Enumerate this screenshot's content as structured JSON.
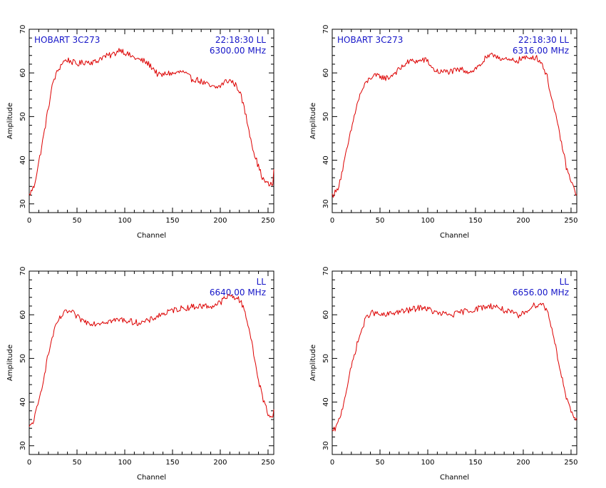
{
  "chart_data": [
    {
      "type": "line",
      "source": "HOBART 3C273",
      "time": "22:18:30",
      "polarization": "LL",
      "frequency": "6300.00 MHz",
      "xlabel": "Channel",
      "ylabel": "Amplitude",
      "xlim": [
        0,
        256
      ],
      "ylim": [
        28,
        70
      ],
      "xticks": [
        0,
        50,
        100,
        150,
        200,
        250
      ],
      "yticks": [
        30,
        40,
        50,
        60,
        70
      ],
      "line_color": "#dd0000",
      "series": [
        {
          "x": [
            0,
            5,
            10,
            15,
            20,
            25,
            30,
            35,
            40,
            45,
            50,
            55,
            60,
            65,
            70,
            75,
            80,
            85,
            90,
            95,
            100,
            105,
            110,
            115,
            120,
            125,
            130,
            135,
            140,
            145,
            150,
            155,
            160,
            165,
            170,
            175,
            180,
            185,
            190,
            195,
            200,
            205,
            210,
            215,
            220,
            225,
            230,
            235,
            240,
            245,
            250,
            255,
            256
          ],
          "values": [
            32,
            34,
            39.5,
            45.5,
            52,
            58,
            60.5,
            62.5,
            63,
            62.5,
            62,
            62.3,
            62.6,
            62.5,
            62.5,
            63.5,
            63.8,
            64,
            64.5,
            65.5,
            64.7,
            64,
            63.5,
            63,
            62.7,
            62,
            61,
            59.5,
            59.5,
            60,
            59.8,
            60,
            60.3,
            59.5,
            58.6,
            58.5,
            58,
            57.5,
            56.8,
            56.6,
            57,
            58,
            58.3,
            57.5,
            56,
            52,
            47,
            42,
            38.5,
            35.5,
            34.5,
            34.3,
            38
          ]
        }
      ]
    },
    {
      "type": "line",
      "source": "HOBART 3C273",
      "time": "22:18:30",
      "polarization": "LL",
      "frequency": "6316.00 MHz",
      "xlabel": "Channel",
      "ylabel": "Amplitude",
      "xlim": [
        0,
        256
      ],
      "ylim": [
        28,
        70
      ],
      "xticks": [
        0,
        50,
        100,
        150,
        200,
        250
      ],
      "yticks": [
        30,
        40,
        50,
        60,
        70
      ],
      "line_color": "#dd0000",
      "series": [
        {
          "x": [
            0,
            5,
            10,
            15,
            20,
            25,
            30,
            35,
            40,
            45,
            50,
            55,
            60,
            65,
            70,
            75,
            80,
            85,
            90,
            95,
            100,
            105,
            110,
            115,
            120,
            125,
            130,
            135,
            140,
            145,
            150,
            155,
            160,
            165,
            170,
            175,
            180,
            185,
            190,
            195,
            200,
            205,
            210,
            215,
            220,
            225,
            230,
            235,
            240,
            245,
            250,
            255
          ],
          "values": [
            32,
            33,
            37,
            42,
            47,
            52,
            55.5,
            57.5,
            59,
            59.2,
            59.3,
            58.8,
            59,
            60,
            60.7,
            61.8,
            62.5,
            62.8,
            62.6,
            63,
            62.7,
            61,
            60.3,
            60.2,
            60.3,
            60.3,
            60.5,
            60.8,
            60.5,
            60.3,
            61,
            61.8,
            63.2,
            63.7,
            64.2,
            63.6,
            63,
            62.8,
            62.8,
            62.9,
            63.5,
            63.2,
            63.8,
            63.3,
            62,
            59,
            54,
            49,
            44,
            38.5,
            35,
            32.5
          ]
        }
      ]
    },
    {
      "type": "line",
      "polarization": "LL",
      "frequency": "6640.00 MHz",
      "xlabel": "Channel",
      "ylabel": "Amplitude",
      "xlim": [
        0,
        256
      ],
      "ylim": [
        28,
        70
      ],
      "xticks": [
        0,
        50,
        100,
        150,
        200,
        250
      ],
      "yticks": [
        30,
        40,
        50,
        60,
        70
      ],
      "line_color": "#dd0000",
      "series": [
        {
          "x": [
            0,
            5,
            10,
            15,
            20,
            25,
            30,
            35,
            40,
            45,
            50,
            55,
            60,
            65,
            70,
            75,
            80,
            85,
            90,
            95,
            100,
            105,
            110,
            115,
            120,
            125,
            130,
            135,
            140,
            145,
            150,
            155,
            160,
            165,
            170,
            175,
            180,
            185,
            190,
            195,
            200,
            205,
            210,
            215,
            220,
            225,
            230,
            235,
            240,
            245,
            250,
            255,
            256
          ],
          "values": [
            34,
            36,
            40,
            45.5,
            51,
            55.5,
            58.5,
            60,
            60.8,
            60.5,
            59.5,
            58.8,
            58.3,
            58.2,
            58,
            58.3,
            58.5,
            58.6,
            58.7,
            58.9,
            58.8,
            58.5,
            58.3,
            58.2,
            58.3,
            58.6,
            59.2,
            59.8,
            60.2,
            60.5,
            61,
            61.3,
            61.5,
            61.6,
            61.8,
            61.9,
            62,
            62,
            61.9,
            62.3,
            62.8,
            63.8,
            64.3,
            64.1,
            63.4,
            61.5,
            57,
            51,
            45,
            40.5,
            37.5,
            36.2,
            39
          ]
        }
      ]
    },
    {
      "type": "line",
      "polarization": "LL",
      "frequency": "6656.00 MHz",
      "xlabel": "Channel",
      "ylabel": "Amplitude",
      "xlim": [
        0,
        256
      ],
      "ylim": [
        28,
        70
      ],
      "xticks": [
        0,
        50,
        100,
        150,
        200,
        250
      ],
      "yticks": [
        30,
        40,
        50,
        60,
        70
      ],
      "line_color": "#dd0000",
      "series": [
        {
          "x": [
            0,
            5,
            10,
            15,
            20,
            25,
            30,
            35,
            40,
            45,
            50,
            55,
            60,
            65,
            70,
            75,
            80,
            85,
            90,
            95,
            100,
            105,
            110,
            115,
            120,
            125,
            130,
            135,
            140,
            145,
            150,
            155,
            160,
            165,
            170,
            175,
            180,
            185,
            190,
            195,
            200,
            205,
            210,
            215,
            220,
            225,
            230,
            235,
            240,
            245,
            250,
            255
          ],
          "values": [
            33,
            34.5,
            38,
            43,
            48,
            52.5,
            56,
            59,
            60.5,
            60.3,
            60,
            59.8,
            60.2,
            60.5,
            60.7,
            60.8,
            61,
            61.3,
            61.5,
            61.8,
            61.3,
            60.8,
            60.3,
            60.2,
            60.1,
            60,
            60.2,
            60.6,
            60.9,
            61,
            61.3,
            61.6,
            61.8,
            62,
            62,
            61.6,
            61,
            60.6,
            60.3,
            59.6,
            60.3,
            61.3,
            62,
            62.4,
            62.5,
            61,
            57,
            51.5,
            46,
            41,
            37.5,
            36
          ]
        }
      ]
    }
  ]
}
